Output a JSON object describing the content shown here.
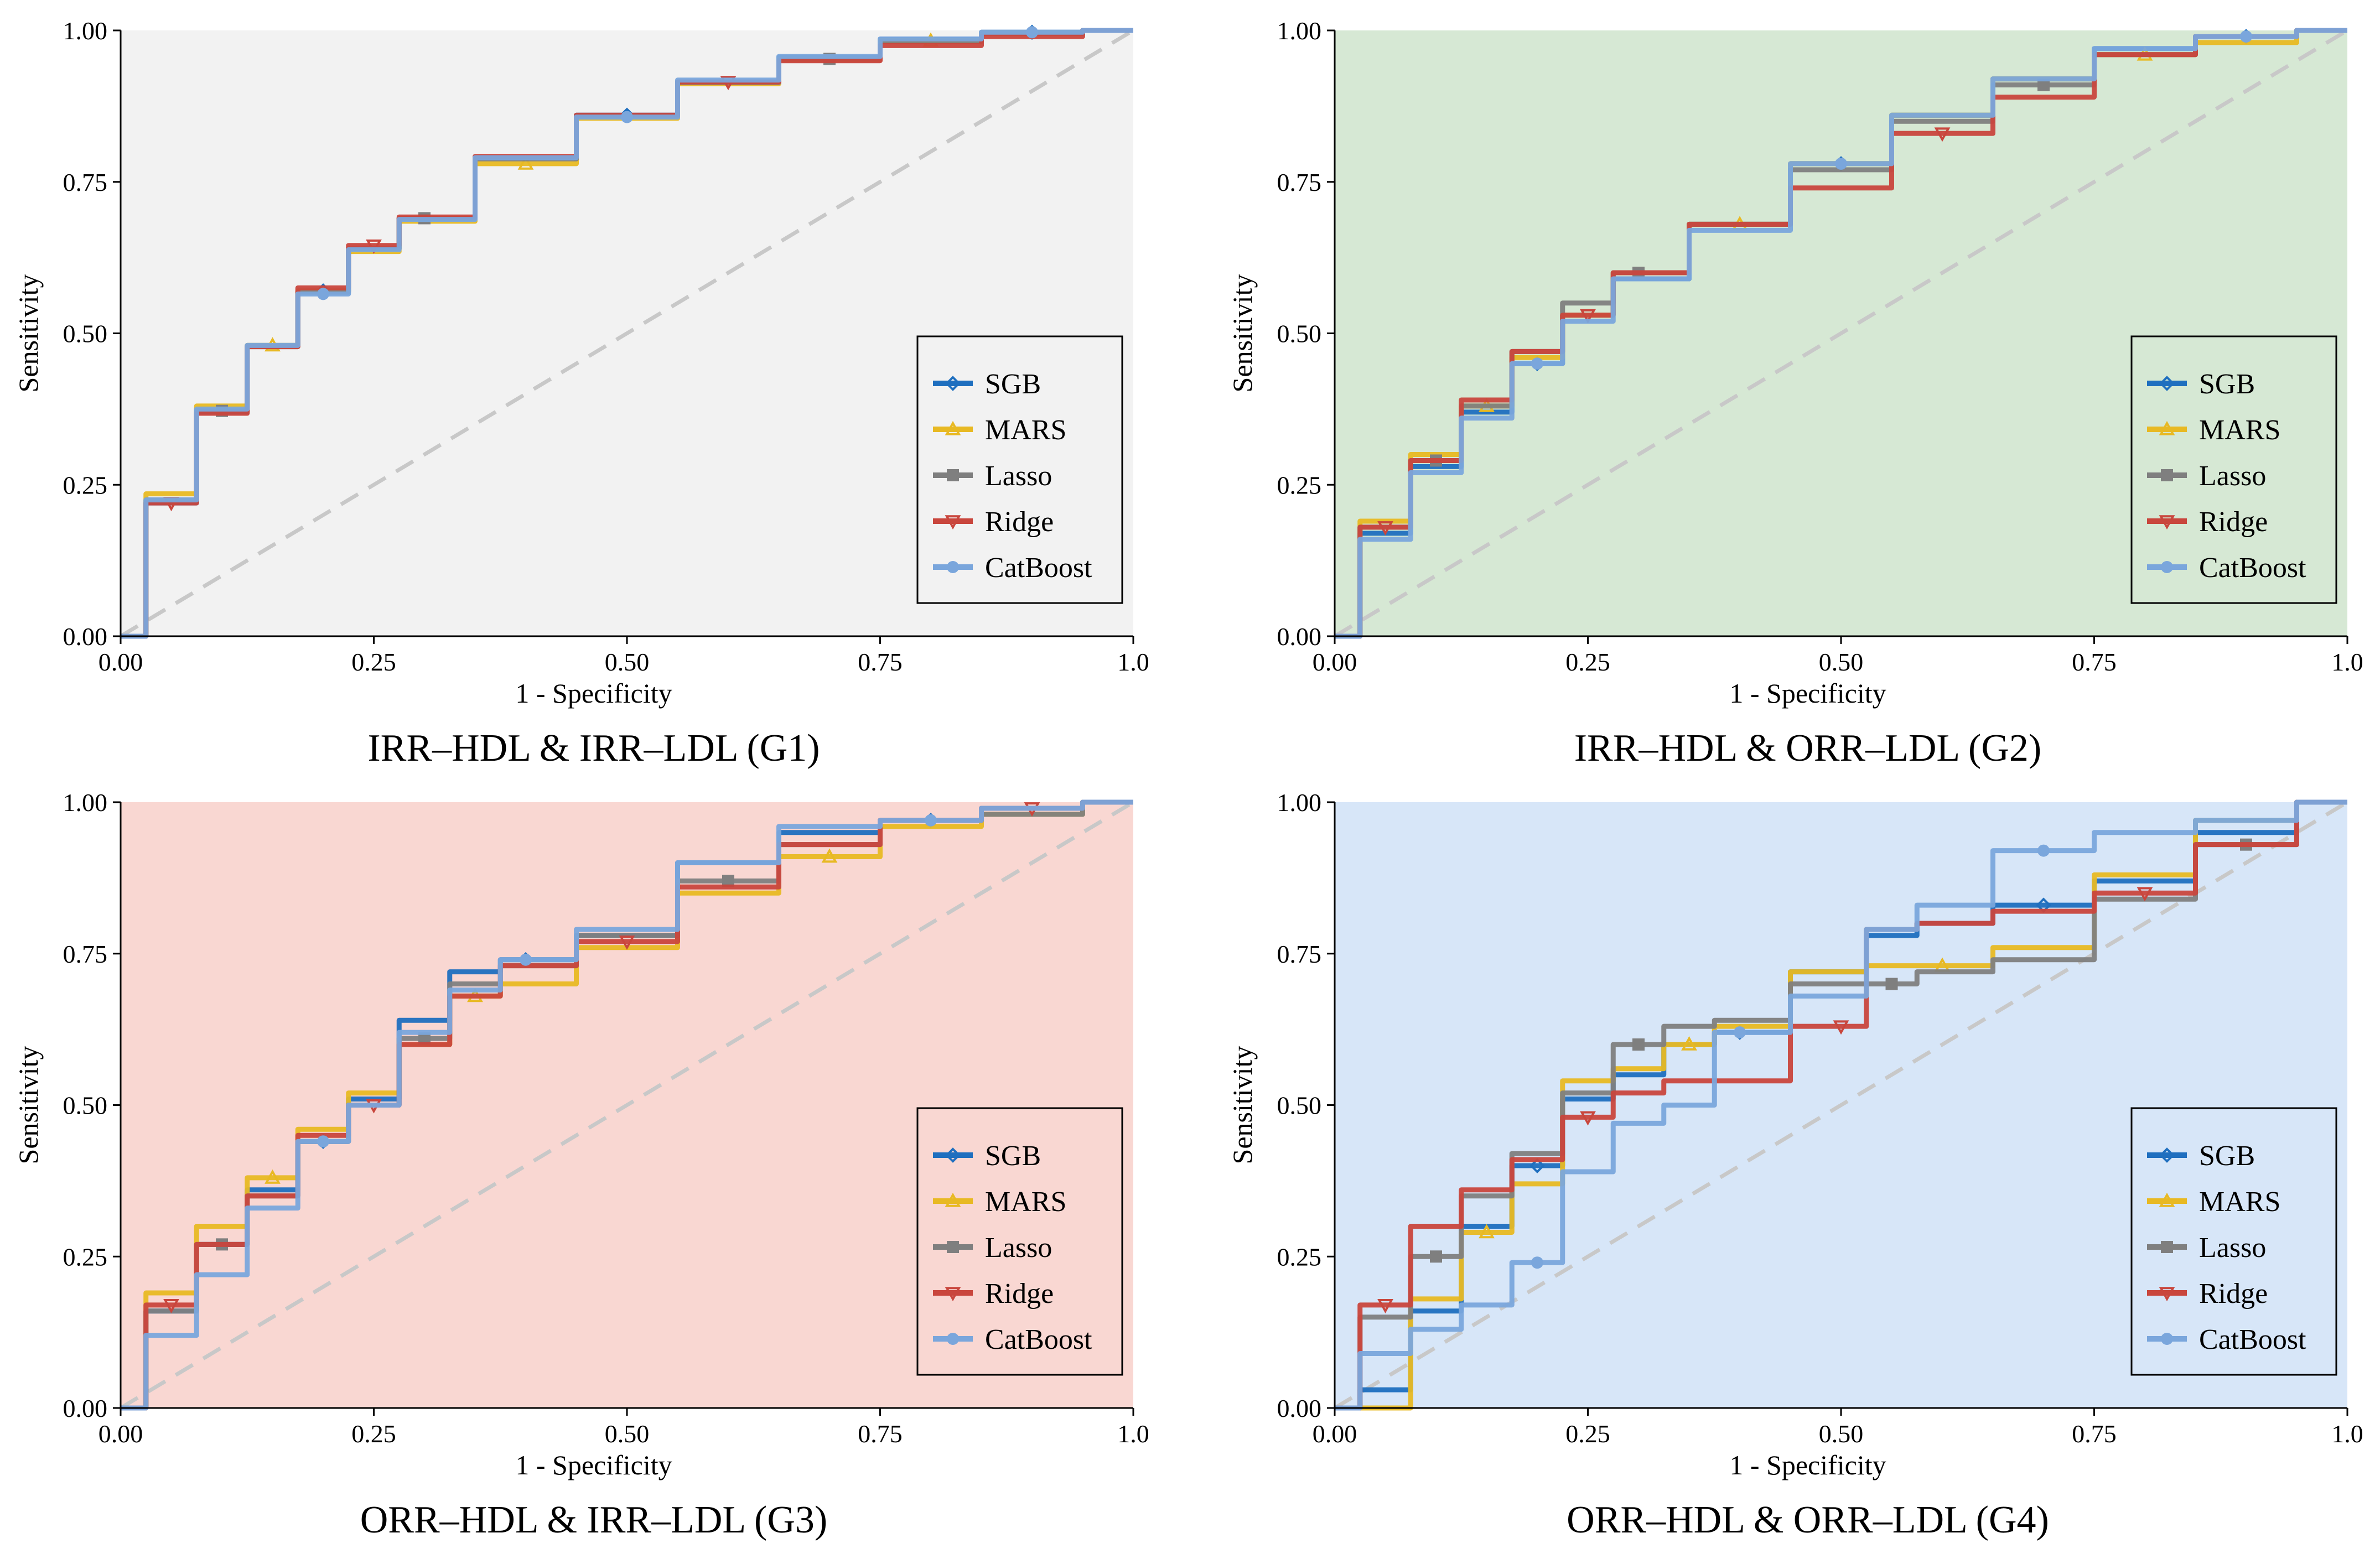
{
  "figure": {
    "xlabel": "1 - Specificity",
    "ylabel": "Sensitivity",
    "x_ticks": [
      "0.00",
      "0.25",
      "0.50",
      "0.75",
      "1.0"
    ],
    "y_ticks": [
      "0.00",
      "0.25",
      "0.50",
      "0.75",
      "1.00"
    ],
    "legend": [
      "SGB",
      "MARS",
      "Lasso",
      "Ridge",
      "CatBoost"
    ],
    "colors": {
      "SGB": "#1f6fbf",
      "MARS": "#e8b923",
      "Lasso": "#7f7f7f",
      "Ridge": "#c9463d",
      "CatBoost": "#7aa6dc",
      "diagonal": "#c8c8c8"
    },
    "backgrounds": {
      "G1": "#f2f2f2",
      "G2": "#d6e8d4",
      "G3": "#f9d7d2",
      "G4": "#d7e6f8"
    }
  },
  "chart_data": [
    {
      "id": "G1",
      "type": "line",
      "title": "IRR–HDL & IRR–LDL (G1)",
      "xlabel": "1 - Specificity",
      "ylabel": "Sensitivity",
      "xlim": [
        0,
        1
      ],
      "ylim": [
        0,
        1
      ],
      "legend_position": "bottom-right",
      "x": [
        0,
        0.05,
        0.1,
        0.15,
        0.2,
        0.25,
        0.3,
        0.4,
        0.5,
        0.6,
        0.7,
        0.8,
        0.9,
        1.0
      ],
      "series": [
        {
          "name": "SGB",
          "values": [
            0,
            0.22,
            0.37,
            0.48,
            0.57,
            0.64,
            0.69,
            0.79,
            0.86,
            0.915,
            0.955,
            0.985,
            0.997,
            1.0
          ]
        },
        {
          "name": "MARS",
          "values": [
            0,
            0.235,
            0.38,
            0.48,
            0.57,
            0.635,
            0.685,
            0.78,
            0.855,
            0.912,
            0.952,
            0.983,
            0.996,
            1.0
          ]
        },
        {
          "name": "Lasso",
          "values": [
            0,
            0.225,
            0.372,
            0.478,
            0.568,
            0.64,
            0.69,
            0.788,
            0.858,
            0.914,
            0.953,
            0.982,
            0.995,
            1.0
          ]
        },
        {
          "name": "Ridge",
          "values": [
            0,
            0.22,
            0.368,
            0.478,
            0.575,
            0.645,
            0.692,
            0.792,
            0.86,
            0.915,
            0.95,
            0.975,
            0.99,
            1.0
          ]
        },
        {
          "name": "CatBoost",
          "values": [
            0,
            0.225,
            0.375,
            0.48,
            0.565,
            0.638,
            0.688,
            0.79,
            0.857,
            0.918,
            0.957,
            0.986,
            0.997,
            1.0
          ]
        }
      ]
    },
    {
      "id": "G2",
      "type": "line",
      "title": "IRR–HDL & ORR–LDL (G2)",
      "xlabel": "1 - Specificity",
      "ylabel": "Sensitivity",
      "xlim": [
        0,
        1
      ],
      "ylim": [
        0,
        1
      ],
      "legend_position": "bottom-right",
      "x": [
        0,
        0.05,
        0.1,
        0.15,
        0.2,
        0.25,
        0.3,
        0.4,
        0.5,
        0.6,
        0.7,
        0.8,
        0.9,
        1.0
      ],
      "series": [
        {
          "name": "SGB",
          "values": [
            0,
            0.17,
            0.28,
            0.37,
            0.45,
            0.53,
            0.59,
            0.68,
            0.78,
            0.86,
            0.92,
            0.97,
            0.99,
            1.0
          ]
        },
        {
          "name": "MARS",
          "values": [
            0,
            0.19,
            0.3,
            0.38,
            0.46,
            0.53,
            0.6,
            0.68,
            0.78,
            0.86,
            0.92,
            0.96,
            0.98,
            1.0
          ]
        },
        {
          "name": "Lasso",
          "values": [
            0,
            0.18,
            0.29,
            0.38,
            0.47,
            0.55,
            0.6,
            0.68,
            0.77,
            0.85,
            0.91,
            0.96,
            0.99,
            1.0
          ]
        },
        {
          "name": "Ridge",
          "values": [
            0,
            0.18,
            0.29,
            0.39,
            0.47,
            0.53,
            0.6,
            0.68,
            0.74,
            0.83,
            0.89,
            0.96,
            0.99,
            1.0
          ]
        },
        {
          "name": "CatBoost",
          "values": [
            0,
            0.16,
            0.27,
            0.36,
            0.45,
            0.52,
            0.59,
            0.67,
            0.78,
            0.86,
            0.92,
            0.97,
            0.99,
            1.0
          ]
        }
      ]
    },
    {
      "id": "G3",
      "type": "line",
      "title": "ORR–HDL & IRR–LDL (G3)",
      "xlabel": "1 - Specificity",
      "ylabel": "Sensitivity",
      "xlim": [
        0,
        1
      ],
      "ylim": [
        0,
        1
      ],
      "legend_position": "bottom-right",
      "x": [
        0,
        0.05,
        0.1,
        0.15,
        0.2,
        0.25,
        0.3,
        0.35,
        0.4,
        0.5,
        0.6,
        0.7,
        0.8,
        0.9,
        1.0
      ],
      "series": [
        {
          "name": "SGB",
          "values": [
            0,
            0.16,
            0.27,
            0.36,
            0.44,
            0.51,
            0.64,
            0.72,
            0.74,
            0.78,
            0.9,
            0.95,
            0.97,
            0.99,
            1.0
          ]
        },
        {
          "name": "MARS",
          "values": [
            0,
            0.19,
            0.3,
            0.38,
            0.46,
            0.52,
            0.6,
            0.68,
            0.7,
            0.76,
            0.85,
            0.91,
            0.96,
            0.98,
            1.0
          ]
        },
        {
          "name": "Lasso",
          "values": [
            0,
            0.16,
            0.27,
            0.35,
            0.44,
            0.5,
            0.61,
            0.7,
            0.73,
            0.78,
            0.87,
            0.93,
            0.97,
            0.98,
            1.0
          ]
        },
        {
          "name": "Ridge",
          "values": [
            0,
            0.17,
            0.27,
            0.35,
            0.45,
            0.5,
            0.6,
            0.68,
            0.73,
            0.77,
            0.86,
            0.93,
            0.97,
            0.99,
            1.0
          ]
        },
        {
          "name": "CatBoost",
          "values": [
            0,
            0.12,
            0.22,
            0.33,
            0.44,
            0.5,
            0.62,
            0.69,
            0.74,
            0.79,
            0.9,
            0.96,
            0.97,
            0.99,
            1.0
          ]
        }
      ]
    },
    {
      "id": "G4",
      "type": "line",
      "title": "ORR–HDL & ORR–LDL (G4)",
      "xlabel": "1 - Specificity",
      "ylabel": "Sensitivity",
      "xlim": [
        0,
        1
      ],
      "ylim": [
        0,
        1
      ],
      "legend_position": "bottom-right",
      "x": [
        0,
        0.05,
        0.1,
        0.15,
        0.2,
        0.25,
        0.3,
        0.35,
        0.4,
        0.5,
        0.55,
        0.6,
        0.7,
        0.8,
        0.9,
        1.0
      ],
      "series": [
        {
          "name": "SGB",
          "values": [
            0,
            0.03,
            0.16,
            0.3,
            0.4,
            0.51,
            0.55,
            0.6,
            0.62,
            0.72,
            0.78,
            0.8,
            0.83,
            0.87,
            0.95,
            1.0
          ]
        },
        {
          "name": "MARS",
          "values": [
            0,
            0.0,
            0.18,
            0.29,
            0.37,
            0.54,
            0.56,
            0.6,
            0.63,
            0.72,
            0.73,
            0.73,
            0.76,
            0.88,
            0.97,
            1.0
          ]
        },
        {
          "name": "Lasso",
          "values": [
            0,
            0.15,
            0.25,
            0.35,
            0.42,
            0.52,
            0.6,
            0.63,
            0.64,
            0.7,
            0.7,
            0.72,
            0.74,
            0.84,
            0.93,
            1.0
          ]
        },
        {
          "name": "Ridge",
          "values": [
            0,
            0.17,
            0.3,
            0.36,
            0.41,
            0.48,
            0.52,
            0.54,
            0.54,
            0.63,
            0.79,
            0.8,
            0.82,
            0.85,
            0.93,
            1.0
          ]
        },
        {
          "name": "CatBoost",
          "values": [
            0,
            0.09,
            0.13,
            0.17,
            0.24,
            0.39,
            0.47,
            0.5,
            0.62,
            0.68,
            0.79,
            0.83,
            0.92,
            0.95,
            0.97,
            1.0
          ]
        }
      ]
    }
  ]
}
